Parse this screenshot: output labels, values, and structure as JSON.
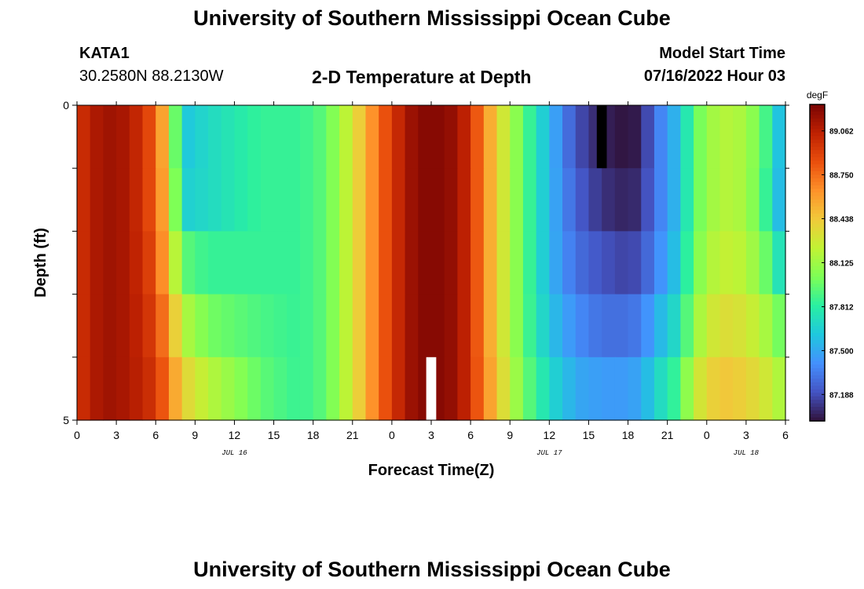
{
  "page": {
    "title": "University of Southern Mississippi Ocean Cube",
    "station": "KATA1",
    "coords": "30.2580N  88.2130W",
    "plot_title": "2-D Temperature at Depth",
    "model_label": "Model Start Time",
    "model_time": "07/16/2022 Hour 03",
    "second_title": "University of Southern Mississippi Ocean Cube"
  },
  "chart_data": {
    "type": "heatmap",
    "title": "2-D Temperature at Depth",
    "xlabel": "Forecast Time(Z)",
    "ylabel": "Depth (ft)",
    "x_hours_range": [
      0,
      54
    ],
    "x_tick_hours": [
      0,
      3,
      6,
      9,
      12,
      15,
      18,
      21,
      24,
      27,
      30,
      33,
      36,
      39,
      42,
      45,
      48,
      51,
      54
    ],
    "x_tick_labels": [
      "0",
      "3",
      "6",
      "9",
      "12",
      "15",
      "18",
      "21",
      "0",
      "3",
      "6",
      "9",
      "12",
      "15",
      "18",
      "21",
      "0",
      "3",
      "6"
    ],
    "date_labels": [
      {
        "hour": 12,
        "text": "JUL 16"
      },
      {
        "hour": 36,
        "text": "JUL 17"
      },
      {
        "hour": 51,
        "text": "JUL 18"
      }
    ],
    "y_range": [
      0,
      5
    ],
    "y_tick_labels": [
      "0",
      "5"
    ],
    "depth_levels": 5,
    "time_step_hours": 1,
    "units": "degF",
    "colorbar": {
      "label": "degF",
      "min": 87.0,
      "max": 89.25,
      "ticks": [
        89.062,
        88.75,
        88.438,
        88.125,
        87.812,
        87.5,
        87.188
      ],
      "colormap": [
        "#30123b",
        "#4454c4",
        "#4490fe",
        "#1fc8de",
        "#29efa2",
        "#7dff56",
        "#c1f334",
        "#f1ca3a",
        "#fe922a",
        "#ea4f0d",
        "#be2102",
        "#7a0403"
      ]
    },
    "keyframes_hours": [
      0,
      2,
      4,
      6,
      7,
      8,
      10,
      14,
      17,
      19,
      21,
      23,
      25,
      26,
      27,
      28,
      29,
      30,
      32,
      34,
      36,
      38,
      40,
      42,
      43,
      44,
      46,
      47,
      49,
      51,
      53,
      54
    ],
    "rows": [
      [
        88.95,
        89.15,
        89.1,
        88.8,
        88.35,
        87.6,
        87.7,
        87.85,
        87.85,
        87.95,
        88.3,
        88.75,
        89.1,
        89.2,
        89.22,
        89.2,
        89.15,
        88.95,
        88.4,
        87.95,
        87.55,
        87.2,
        87.05,
        87.0,
        87.05,
        87.3,
        87.6,
        87.95,
        88.2,
        88.15,
        87.8,
        87.4
      ],
      [
        88.95,
        89.15,
        89.1,
        88.8,
        88.4,
        87.65,
        87.7,
        87.85,
        87.85,
        87.95,
        88.3,
        88.75,
        89.1,
        89.2,
        89.22,
        89.2,
        89.15,
        88.95,
        88.4,
        87.95,
        87.55,
        87.25,
        87.1,
        87.05,
        87.1,
        87.3,
        87.6,
        87.95,
        88.2,
        88.15,
        87.75,
        87.4
      ],
      [
        88.95,
        89.15,
        89.1,
        88.85,
        88.45,
        87.95,
        87.85,
        87.85,
        87.85,
        87.95,
        88.3,
        88.75,
        89.1,
        89.2,
        89.22,
        89.2,
        89.15,
        88.95,
        88.4,
        87.95,
        87.55,
        87.3,
        87.2,
        87.15,
        87.2,
        87.35,
        87.65,
        88.0,
        88.25,
        88.2,
        87.9,
        87.6
      ],
      [
        88.95,
        89.15,
        89.1,
        88.9,
        88.6,
        88.2,
        88.0,
        87.9,
        87.85,
        87.95,
        88.3,
        88.75,
        89.1,
        89.2,
        89.22,
        89.2,
        89.15,
        88.95,
        88.4,
        87.95,
        87.6,
        87.4,
        87.3,
        87.3,
        87.35,
        87.5,
        87.75,
        88.1,
        88.35,
        88.3,
        88.1,
        87.9
      ],
      [
        88.95,
        89.15,
        89.1,
        88.95,
        88.7,
        88.4,
        88.2,
        87.95,
        87.85,
        87.95,
        88.3,
        88.75,
        89.1,
        89.2,
        89.22,
        89.2,
        89.15,
        88.95,
        88.45,
        88.0,
        87.7,
        87.5,
        87.45,
        87.45,
        87.5,
        87.65,
        87.9,
        88.25,
        88.45,
        88.4,
        88.25,
        88.1
      ]
    ],
    "missing_cells": [
      {
        "hour": 27,
        "depth_index": 4,
        "color": "#ffffff"
      },
      {
        "hour": 40,
        "depth_index": 0,
        "color": "#000000"
      }
    ]
  }
}
